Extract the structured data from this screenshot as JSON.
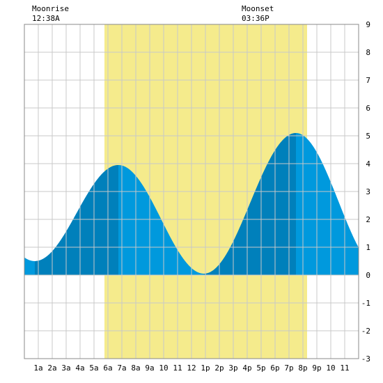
{
  "chart_data": {
    "type": "area",
    "annotations": {
      "moonrise": {
        "label": "Moonrise",
        "time": "12:38A"
      },
      "moonset": {
        "label": "Moonset",
        "time": "03:36P"
      }
    },
    "x_tick_labels": [
      "1a",
      "2a",
      "3a",
      "4a",
      "5a",
      "6a",
      "7a",
      "8a",
      "9a",
      "10",
      "11",
      "12",
      "1p",
      "2p",
      "3p",
      "4p",
      "5p",
      "6p",
      "7p",
      "8p",
      "9p",
      "10",
      "11"
    ],
    "y_tick_labels": [
      "9",
      "8",
      "7",
      "6",
      "5",
      "4",
      "3",
      "2",
      "1",
      "0",
      "-1",
      "-2",
      "-3"
    ],
    "xlim": [
      0,
      24
    ],
    "ylim": [
      -3,
      9
    ],
    "daylight_hours": [
      5.75,
      20.3
    ],
    "tide_extremes": [
      {
        "type": "low",
        "hour": 0.75,
        "value": 0.5
      },
      {
        "type": "high",
        "hour": 6.75,
        "value": 3.95
      },
      {
        "type": "low",
        "hour": 12.9,
        "value": 0.05
      },
      {
        "type": "high",
        "hour": 19.5,
        "value": 5.1
      },
      {
        "type": "low",
        "hour": 25.6,
        "value": 0.2
      }
    ],
    "dark_bands_hours": [
      [
        0.75,
        6.75
      ],
      [
        12.9,
        19.5
      ]
    ],
    "grid": true,
    "colors": {
      "daylight": "#f5eb8c",
      "tide": "#0099dd",
      "tide_rising": "#0080bb",
      "grid": "#c8c8c8"
    }
  }
}
